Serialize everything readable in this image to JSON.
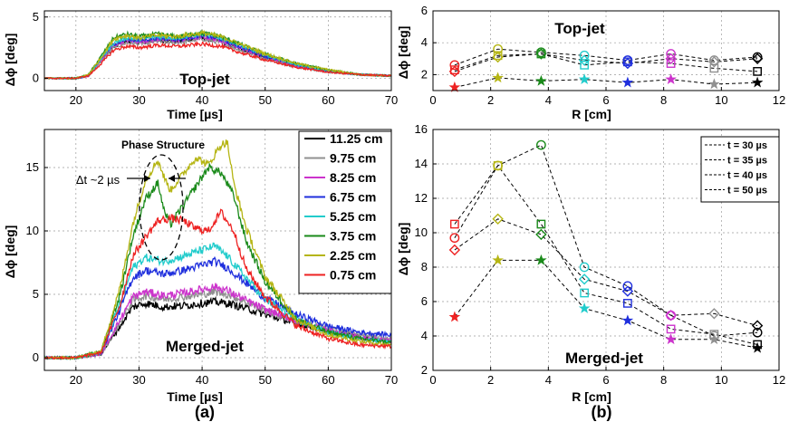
{
  "chart_data": [
    {
      "id": "a_top",
      "type": "line",
      "title": "Top-jet",
      "xlabel": "Time  [µs]",
      "ylabel": "Δϕ [deg]",
      "xlim": [
        15,
        70
      ],
      "ylim": [
        -1,
        5.5
      ],
      "xticks": [
        20,
        30,
        40,
        50,
        60,
        70
      ],
      "yticks": [
        0,
        5
      ],
      "grid": true,
      "series": [
        {
          "name": "11.25 cm",
          "color": "#000000",
          "x": [
            15,
            20,
            22,
            24,
            26,
            28,
            30,
            33,
            36,
            40,
            43,
            46,
            50,
            55,
            60,
            65,
            70
          ],
          "y": [
            0,
            0,
            0.2,
            1.5,
            2.6,
            3.0,
            2.9,
            3.1,
            3.0,
            3.3,
            3.0,
            2.4,
            1.7,
            1.0,
            0.6,
            0.3,
            0.2
          ]
        },
        {
          "name": "9.75 cm",
          "color": "#909090",
          "x": [
            15,
            20,
            22,
            24,
            26,
            28,
            30,
            33,
            36,
            40,
            43,
            46,
            50,
            55,
            60,
            65,
            70
          ],
          "y": [
            0,
            0,
            0.2,
            1.4,
            2.5,
            2.9,
            2.8,
            3.0,
            2.9,
            3.2,
            2.9,
            2.3,
            1.6,
            0.9,
            0.5,
            0.3,
            0.2
          ]
        },
        {
          "name": "8.25 cm",
          "color": "#cc33cc",
          "x": [
            15,
            20,
            22,
            24,
            26,
            28,
            30,
            33,
            36,
            40,
            43,
            46,
            50,
            55,
            60,
            65,
            70
          ],
          "y": [
            0,
            0,
            0.2,
            1.5,
            2.7,
            3.1,
            3.0,
            3.2,
            3.1,
            3.4,
            3.1,
            2.5,
            1.8,
            1.0,
            0.6,
            0.3,
            0.2
          ]
        },
        {
          "name": "6.75 cm",
          "color": "#1f2fdd",
          "x": [
            15,
            20,
            22,
            24,
            26,
            28,
            30,
            33,
            36,
            40,
            43,
            46,
            50,
            55,
            60,
            65,
            70
          ],
          "y": [
            0,
            0,
            0.2,
            1.6,
            2.8,
            3.2,
            3.1,
            3.3,
            3.2,
            3.5,
            3.2,
            2.6,
            1.8,
            1.1,
            0.6,
            0.3,
            0.2
          ]
        },
        {
          "name": "5.25 cm",
          "color": "#22cccc",
          "x": [
            15,
            20,
            22,
            24,
            26,
            28,
            30,
            33,
            36,
            40,
            43,
            46,
            50,
            55,
            60,
            65,
            70
          ],
          "y": [
            0,
            0,
            0.2,
            1.6,
            2.9,
            3.3,
            3.2,
            3.4,
            3.3,
            3.6,
            3.3,
            2.7,
            1.9,
            1.1,
            0.6,
            0.3,
            0.2
          ]
        },
        {
          "name": "3.75 cm",
          "color": "#1a8a1a",
          "x": [
            15,
            20,
            22,
            24,
            26,
            28,
            30,
            33,
            36,
            40,
            43,
            46,
            50,
            55,
            60,
            65,
            70
          ],
          "y": [
            0,
            0,
            0.3,
            1.8,
            3.3,
            3.6,
            3.4,
            3.6,
            3.4,
            3.7,
            3.4,
            2.8,
            2.0,
            1.2,
            0.7,
            0.3,
            0.2
          ]
        },
        {
          "name": "2.25 cm",
          "color": "#b5b514",
          "x": [
            15,
            20,
            22,
            24,
            26,
            28,
            30,
            33,
            36,
            40,
            43,
            46,
            50,
            55,
            60,
            65,
            70
          ],
          "y": [
            0,
            0,
            0.3,
            1.7,
            3.2,
            3.5,
            3.3,
            3.5,
            3.4,
            3.7,
            3.4,
            2.8,
            2.0,
            1.2,
            0.7,
            0.3,
            0.2
          ]
        },
        {
          "name": "0.75 cm",
          "color": "#ee2222",
          "x": [
            15,
            20,
            22,
            24,
            26,
            28,
            30,
            33,
            36,
            40,
            43,
            46,
            50,
            55,
            60,
            65,
            70
          ],
          "y": [
            0,
            0,
            0.2,
            1.2,
            2.3,
            2.6,
            2.5,
            2.7,
            2.6,
            2.8,
            2.6,
            2.1,
            1.5,
            0.9,
            0.5,
            0.3,
            0.2
          ]
        }
      ]
    },
    {
      "id": "a_bottom",
      "type": "line",
      "title": "Merged-jet",
      "xlabel": "Time  [µs]",
      "ylabel": "Δϕ [deg]",
      "xlim": [
        15,
        70
      ],
      "ylim": [
        -1,
        18
      ],
      "xticks": [
        20,
        30,
        40,
        50,
        60,
        70
      ],
      "yticks": [
        0,
        5,
        10,
        15
      ],
      "grid": true,
      "annotation_title": "Phase Structure",
      "annotation_dt": "Δt ~2 µs",
      "series": [
        {
          "name": "11.25 cm",
          "color": "#000000",
          "x": [
            15,
            20,
            24,
            27,
            29,
            31,
            34,
            37,
            40,
            42,
            44,
            47,
            50,
            55,
            60,
            65,
            70
          ],
          "y": [
            0,
            0,
            0.3,
            2.5,
            4.0,
            4.3,
            4.0,
            4.1,
            4.3,
            4.4,
            4.3,
            3.9,
            3.4,
            2.7,
            2.1,
            1.6,
            1.3
          ]
        },
        {
          "name": "9.75 cm",
          "color": "#909090",
          "x": [
            15,
            20,
            24,
            27,
            29,
            31,
            34,
            37,
            40,
            42,
            44,
            47,
            50,
            55,
            60,
            65,
            70
          ],
          "y": [
            0,
            0,
            0.3,
            2.8,
            4.5,
            4.9,
            4.6,
            4.8,
            5.0,
            5.2,
            5.0,
            4.4,
            3.7,
            2.9,
            2.3,
            1.8,
            1.5
          ]
        },
        {
          "name": "8.25 cm",
          "color": "#cc33cc",
          "x": [
            15,
            20,
            24,
            27,
            29,
            31,
            34,
            37,
            40,
            42,
            44,
            47,
            50,
            55,
            60,
            65,
            70
          ],
          "y": [
            0,
            0,
            0.3,
            3.0,
            4.8,
            5.2,
            4.9,
            5.1,
            5.4,
            5.6,
            5.3,
            4.5,
            3.8,
            2.9,
            2.2,
            1.6,
            1.3
          ]
        },
        {
          "name": "6.75 cm",
          "color": "#1f2fdd",
          "x": [
            15,
            20,
            24,
            27,
            29,
            31,
            34,
            37,
            40,
            42,
            44,
            47,
            50,
            55,
            60,
            65,
            70
          ],
          "y": [
            0,
            0,
            0.4,
            3.8,
            6.3,
            6.9,
            6.6,
            6.9,
            7.3,
            7.6,
            7.1,
            5.9,
            4.7,
            3.4,
            2.5,
            2.0,
            1.8
          ]
        },
        {
          "name": "5.25 cm",
          "color": "#22cccc",
          "x": [
            15,
            20,
            24,
            27,
            29,
            31,
            34,
            37,
            40,
            42,
            44,
            47,
            50,
            55,
            60,
            65,
            70
          ],
          "y": [
            0,
            0,
            0.4,
            4.3,
            7.1,
            7.9,
            7.6,
            8.0,
            8.5,
            8.8,
            8.0,
            6.3,
            4.6,
            3.0,
            2.0,
            1.5,
            1.2
          ]
        },
        {
          "name": "3.75 cm",
          "color": "#1a8a1a",
          "x": [
            15,
            20,
            24,
            27,
            29,
            31,
            33,
            34,
            35,
            37,
            39,
            41,
            43,
            45,
            47,
            50,
            55,
            60,
            65,
            70
          ],
          "y": [
            0,
            0,
            0.5,
            5.0,
            9.5,
            12.5,
            13.8,
            11.5,
            10.5,
            12.0,
            13.5,
            15.0,
            14.6,
            12.8,
            9.2,
            6.0,
            3.0,
            2.0,
            1.5,
            1.2
          ]
        },
        {
          "name": "2.25 cm",
          "color": "#b5b514",
          "x": [
            15,
            20,
            24,
            27,
            29,
            31,
            33,
            34,
            35,
            37,
            39,
            41,
            43,
            44,
            45,
            47,
            50,
            55,
            60,
            65,
            70
          ],
          "y": [
            0,
            0,
            0.5,
            5.5,
            10.5,
            14.0,
            15.6,
            14.2,
            13.2,
            14.5,
            15.8,
            15.2,
            16.8,
            17.0,
            13.8,
            10.2,
            6.4,
            3.0,
            1.8,
            1.3,
            1.0
          ]
        },
        {
          "name": "0.75 cm",
          "color": "#ee2222",
          "x": [
            15,
            20,
            24,
            27,
            29,
            31,
            33,
            35,
            37,
            39,
            41,
            43,
            45,
            47,
            50,
            55,
            60,
            65,
            70
          ],
          "y": [
            0,
            0,
            0.4,
            4.2,
            8.0,
            9.5,
            10.8,
            11.0,
            10.8,
            10.2,
            10.0,
            11.5,
            10.0,
            7.0,
            4.8,
            2.5,
            1.5,
            1.0,
            0.9
          ]
        }
      ]
    },
    {
      "id": "b_top",
      "type": "line",
      "title": "Top-jet",
      "xlabel": "R [cm]",
      "ylabel": "Δϕ [deg]",
      "xlim": [
        0,
        12
      ],
      "ylim": [
        1,
        6
      ],
      "xticks": [
        0,
        2,
        4,
        6,
        8,
        10,
        12
      ],
      "yticks": [
        2,
        4,
        6
      ],
      "grid": true,
      "x": [
        0.75,
        2.25,
        3.75,
        5.25,
        6.75,
        8.25,
        9.75,
        11.25
      ],
      "series": [
        {
          "name": "t = 30 µs",
          "marker": "diamond",
          "y": [
            2.2,
            3.1,
            3.3,
            2.9,
            2.7,
            3.0,
            2.8,
            3.0
          ]
        },
        {
          "name": "t = 35 µs",
          "marker": "square",
          "y": [
            2.3,
            3.2,
            3.3,
            2.6,
            2.8,
            2.7,
            2.4,
            2.2
          ]
        },
        {
          "name": "t = 40 µs",
          "marker": "circle",
          "y": [
            2.6,
            3.6,
            3.4,
            3.2,
            2.9,
            3.3,
            2.9,
            3.1
          ]
        },
        {
          "name": "t = 50 µs",
          "marker": "star",
          "y": [
            1.2,
            1.8,
            1.6,
            1.7,
            1.5,
            1.7,
            1.4,
            1.5
          ]
        }
      ]
    },
    {
      "id": "b_bottom",
      "type": "line",
      "title": "Merged-jet",
      "xlabel": "R [cm]",
      "ylabel": "Δϕ [deg]",
      "xlim": [
        0,
        12
      ],
      "ylim": [
        2,
        16
      ],
      "xticks": [
        0,
        2,
        4,
        6,
        8,
        10,
        12
      ],
      "yticks": [
        2,
        4,
        6,
        8,
        10,
        12,
        14,
        16
      ],
      "grid": true,
      "legend": "top-right",
      "x": [
        0.75,
        2.25,
        3.75,
        5.25,
        6.75,
        8.25,
        9.75,
        11.25
      ],
      "series": [
        {
          "name": "t = 30 µs",
          "marker": "diamond",
          "y": [
            9.0,
            10.8,
            9.9,
            7.3,
            6.6,
            5.2,
            5.3,
            4.6
          ]
        },
        {
          "name": "t = 35 µs",
          "marker": "square",
          "y": [
            10.5,
            13.9,
            10.5,
            6.5,
            5.9,
            4.4,
            4.1,
            3.5
          ]
        },
        {
          "name": "t = 40 µs",
          "marker": "circle",
          "y": [
            9.7,
            13.9,
            15.1,
            8.0,
            6.9,
            5.2,
            4.0,
            4.2
          ]
        },
        {
          "name": "t = 50 µs",
          "marker": "star",
          "y": [
            5.1,
            8.4,
            8.4,
            5.6,
            4.9,
            3.8,
            3.8,
            3.3
          ]
        }
      ]
    }
  ],
  "radius_legend_title": "",
  "point_colors": [
    "#ee2222",
    "#b5b514",
    "#1a8a1a",
    "#22cccc",
    "#1f2fdd",
    "#cc33cc",
    "#909090",
    "#000000"
  ],
  "panel_labels": [
    "(a)",
    "(b)"
  ]
}
